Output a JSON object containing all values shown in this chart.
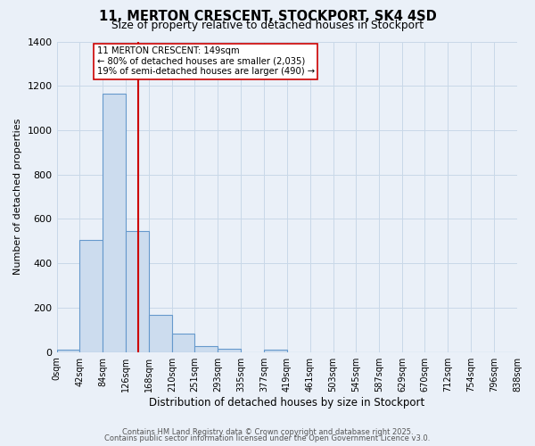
{
  "title": "11, MERTON CRESCENT, STOCKPORT, SK4 4SD",
  "subtitle": "Size of property relative to detached houses in Stockport",
  "xlabel": "Distribution of detached houses by size in Stockport",
  "ylabel": "Number of detached properties",
  "bin_edges": [
    0,
    42,
    84,
    126,
    168,
    210,
    251,
    293,
    335,
    377,
    419,
    461,
    503,
    545,
    587,
    629,
    670,
    712,
    754,
    796,
    838
  ],
  "bin_labels": [
    "0sqm",
    "42sqm",
    "84sqm",
    "126sqm",
    "168sqm",
    "210sqm",
    "251sqm",
    "293sqm",
    "335sqm",
    "377sqm",
    "419sqm",
    "461sqm",
    "503sqm",
    "545sqm",
    "587sqm",
    "629sqm",
    "670sqm",
    "712sqm",
    "754sqm",
    "796sqm",
    "838sqm"
  ],
  "counts": [
    10,
    505,
    1163,
    545,
    168,
    82,
    27,
    16,
    0,
    12,
    0,
    0,
    0,
    0,
    0,
    0,
    0,
    0,
    0,
    0
  ],
  "bar_color": "#ccdcee",
  "bar_edge_color": "#6699cc",
  "vline_x": 149,
  "vline_color": "#cc0000",
  "annotation_line1": "11 MERTON CRESCENT: 149sqm",
  "annotation_line2": "← 80% of detached houses are smaller (2,035)",
  "annotation_line3": "19% of semi-detached houses are larger (490) →",
  "annotation_box_color": "#ffffff",
  "annotation_box_edge": "#cc0000",
  "ylim": [
    0,
    1400
  ],
  "yticks": [
    0,
    200,
    400,
    600,
    800,
    1000,
    1200,
    1400
  ],
  "grid_color": "#c8d8e8",
  "bg_color": "#eaf0f8",
  "footer1": "Contains HM Land Registry data © Crown copyright and database right 2025.",
  "footer2": "Contains public sector information licensed under the Open Government Licence v3.0."
}
